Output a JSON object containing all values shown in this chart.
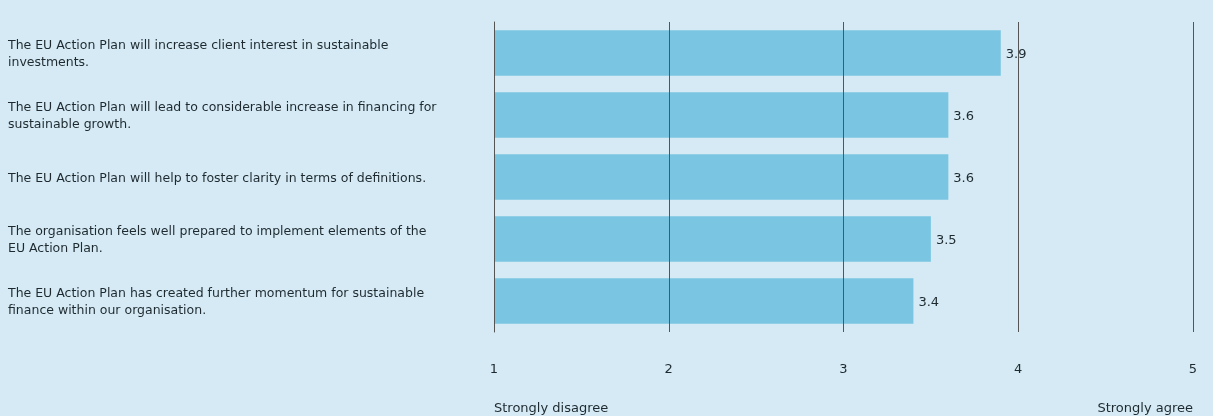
{
  "chart_data": {
    "type": "bar",
    "orientation": "horizontal",
    "categories": [
      "The EU Action Plan will increase client interest in sustainable investments.",
      "The EU Action Plan will lead to considerable increase in financing for sustainable growth.",
      "The EU Action Plan will help to foster clarity in terms of definitions.",
      "The organisation feels well prepared to implement elements of the EU Action Plan.",
      "The EU Action Plan has created further momentum for sustainable finance within our organisation."
    ],
    "values": [
      3.9,
      3.6,
      3.6,
      3.5,
      3.4
    ],
    "color": "#7ac6e2",
    "xlim": [
      1,
      5
    ],
    "xticks": [
      1,
      2,
      3,
      4,
      5
    ],
    "grid": "x",
    "data_labels": true,
    "annotations": [
      "Strongly disagree",
      "Strongly agree"
    ]
  }
}
